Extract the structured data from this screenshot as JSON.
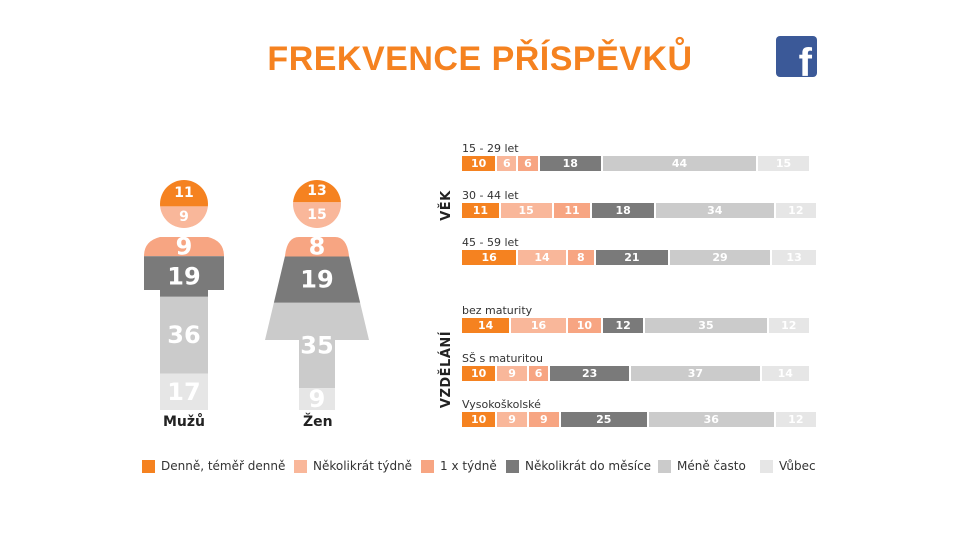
{
  "title": "FREKVENCE PŘÍSPĚVKŮ",
  "logo": {
    "icon": "facebook-icon",
    "glyph": "f",
    "color": "#3b5998"
  },
  "colors": [
    "#f58220",
    "#f9b79a",
    "#f7a582",
    "#7a7a7a",
    "#cbcbcb",
    "#e6e6e6"
  ],
  "legend": [
    {
      "label": "Denně, téměř denně",
      "color": "#f58220"
    },
    {
      "label": "Několikrát týdně",
      "color": "#f9b79a"
    },
    {
      "label": "1 x týdně",
      "color": "#f7a582"
    },
    {
      "label": "Několikrát do měsíce",
      "color": "#7a7a7a"
    },
    {
      "label": "Méně často",
      "color": "#cbcbcb"
    },
    {
      "label": "Vůbec",
      "color": "#e6e6e6"
    }
  ],
  "chart_data": [
    {
      "type": "bar",
      "stacked": true,
      "categories": [
        "Mužů",
        "Žen"
      ],
      "series": [
        {
          "name": "Denně, téměř denně",
          "values": [
            11,
            13
          ]
        },
        {
          "name": "Několikrát týdně",
          "values": [
            9,
            15
          ]
        },
        {
          "name": "1 x týdně",
          "values": [
            9,
            8
          ]
        },
        {
          "name": "Několikrát do měsíce",
          "values": [
            19,
            19
          ]
        },
        {
          "name": "Méně často",
          "values": [
            36,
            35
          ]
        },
        {
          "name": "Vůbec",
          "values": [
            17,
            9
          ]
        }
      ]
    },
    {
      "type": "bar",
      "orientation": "horizontal",
      "stacked": true,
      "groups": [
        {
          "name": "VĚK",
          "rows": [
            {
              "label": "15 - 29 let",
              "values": [
                10,
                6,
                6,
                18,
                44,
                15
              ]
            },
            {
              "label": "30 - 44 let",
              "values": [
                11,
                15,
                11,
                18,
                34,
                12
              ]
            },
            {
              "label": "45 - 59 let",
              "values": [
                16,
                14,
                8,
                21,
                29,
                13
              ]
            }
          ]
        },
        {
          "name": "VZDĚLÁNÍ",
          "rows": [
            {
              "label": "bez maturity",
              "values": [
                14,
                16,
                10,
                12,
                35,
                12
              ]
            },
            {
              "label": "SŠ s maturitou",
              "values": [
                10,
                9,
                6,
                23,
                37,
                14
              ]
            },
            {
              "label": "Vysokoškolské",
              "values": [
                10,
                9,
                9,
                25,
                36,
                12
              ]
            }
          ]
        }
      ]
    }
  ]
}
